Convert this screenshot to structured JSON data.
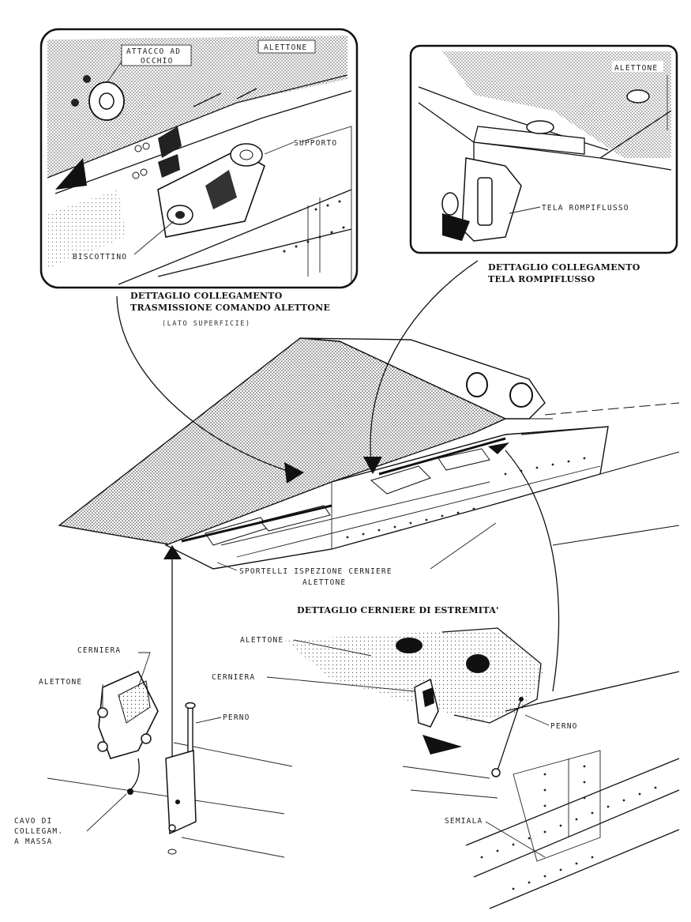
{
  "detail_panels": {
    "transmission": {
      "title_line1": "DETTAGLIO COLLEGAMENTO",
      "title_line2": "TRASMISSIONE COMANDO ALETTONE",
      "subtitle": "(LATO SUPERFICIE)",
      "labels": {
        "attacco_line1": "ATTACCO AD",
        "attacco_line2": "OCCHIO",
        "alettone": "ALETTONE",
        "supporto": "SUPPORTO",
        "biscottino": "BISCOTTINO"
      }
    },
    "tela": {
      "title_line1": "DETTAGLIO COLLEGAMENTO",
      "title_line2": "TELA ROMPIFLUSSO",
      "labels": {
        "alettone": "ALETTONE",
        "tela": "TELA ROMPIFLUSSO"
      }
    }
  },
  "main_view": {
    "sportelli_line1": "SPORTELLI ISPEZIONE CERNIERE",
    "sportelli_line2": "ALETTONE"
  },
  "hinge_detail": {
    "cerniera": "CERNIERA",
    "alettone": "ALETTONE",
    "perno": "PERNO",
    "cavo_line1": "CAVO DI",
    "cavo_line2": "COLLEGAM.",
    "cavo_line3": "A MASSA"
  },
  "tip_detail": {
    "title": "DETTAGLIO CERNIERE DI ESTREMITA'",
    "alettone": "ALETTONE",
    "cerniera": "CERNIERA",
    "perno": "PERNO",
    "semiala": "SEMIALA"
  },
  "colors": {
    "ink": "#111111",
    "paper": "#ffffff",
    "stipple": "#555555"
  }
}
